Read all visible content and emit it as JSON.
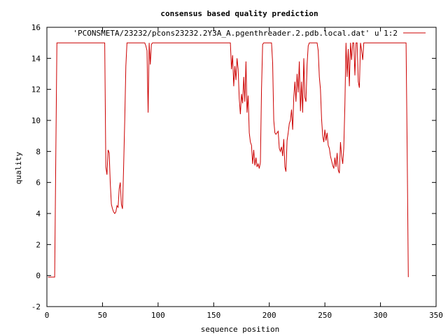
{
  "chart_data": {
    "type": "line",
    "title": "consensus based quality prediction",
    "xlabel": "sequence position",
    "ylabel": "quality",
    "xlim": [
      0,
      350
    ],
    "ylim": [
      -2,
      16
    ],
    "xticks": [
      0,
      50,
      100,
      150,
      200,
      250,
      300,
      350
    ],
    "yticks": [
      -2,
      0,
      2,
      4,
      6,
      8,
      10,
      12,
      14,
      16
    ],
    "grid": false,
    "legend_position": "top-right",
    "series": [
      {
        "name": "'PCONSMETA/23232/pcons23232.2Y3A_A.pgenthreader.2.pdb.local.dat' u 1:2",
        "color": "#cc0000",
        "points": [
          [
            1,
            -0.1
          ],
          [
            7,
            -0.1
          ],
          [
            8,
            7.6
          ],
          [
            9,
            15
          ],
          [
            10,
            15
          ],
          [
            20,
            15
          ],
          [
            30,
            15
          ],
          [
            40,
            15
          ],
          [
            50,
            15
          ],
          [
            51,
            15
          ],
          [
            52,
            15
          ],
          [
            53,
            7.0
          ],
          [
            54,
            6.5
          ],
          [
            55,
            8.1
          ],
          [
            56,
            7.9
          ],
          [
            57,
            6.0
          ],
          [
            58,
            4.6
          ],
          [
            59,
            4.3
          ],
          [
            60,
            4.1
          ],
          [
            61,
            4.0
          ],
          [
            62,
            4.1
          ],
          [
            63,
            4.5
          ],
          [
            64,
            4.4
          ],
          [
            65,
            5.6
          ],
          [
            66,
            6.0
          ],
          [
            67,
            4.6
          ],
          [
            68,
            4.3
          ],
          [
            69,
            7.0
          ],
          [
            70,
            10.0
          ],
          [
            71,
            13.5
          ],
          [
            72,
            15
          ],
          [
            80,
            15
          ],
          [
            88,
            15
          ],
          [
            89,
            14.8
          ],
          [
            90,
            14.5
          ],
          [
            91,
            10.5
          ],
          [
            92,
            15
          ],
          [
            93,
            13.6
          ],
          [
            94,
            14.9
          ],
          [
            95,
            15
          ],
          [
            100,
            15
          ],
          [
            110,
            15
          ],
          [
            120,
            15
          ],
          [
            130,
            15
          ],
          [
            140,
            15
          ],
          [
            150,
            15
          ],
          [
            160,
            15
          ],
          [
            165,
            15
          ],
          [
            166,
            13.3
          ],
          [
            167,
            14.2
          ],
          [
            168,
            12.2
          ],
          [
            169,
            13.5
          ],
          [
            170,
            12.6
          ],
          [
            171,
            14.0
          ],
          [
            172,
            13.3
          ],
          [
            173,
            11.4
          ],
          [
            174,
            10.4
          ],
          [
            175,
            11.7
          ],
          [
            176,
            11.1
          ],
          [
            177,
            12.8
          ],
          [
            178,
            11.2
          ],
          [
            179,
            13.8
          ],
          [
            180,
            10.5
          ],
          [
            181,
            11.6
          ],
          [
            182,
            9.2
          ],
          [
            183,
            8.6
          ],
          [
            184,
            8.4
          ],
          [
            185,
            7.2
          ],
          [
            186,
            8.1
          ],
          [
            187,
            7.1
          ],
          [
            188,
            7.6
          ],
          [
            189,
            7.0
          ],
          [
            190,
            7.2
          ],
          [
            191,
            6.9
          ],
          [
            192,
            7.3
          ],
          [
            193,
            12.0
          ],
          [
            194,
            14.9
          ],
          [
            195,
            15
          ],
          [
            196,
            15
          ],
          [
            200,
            15
          ],
          [
            202,
            15
          ],
          [
            203,
            13.7
          ],
          [
            204,
            10.0
          ],
          [
            205,
            9.2
          ],
          [
            206,
            9.1
          ],
          [
            207,
            9.2
          ],
          [
            208,
            9.3
          ],
          [
            209,
            8.2
          ],
          [
            210,
            8.0
          ],
          [
            211,
            8.3
          ],
          [
            212,
            7.7
          ],
          [
            213,
            8.8
          ],
          [
            214,
            7.0
          ],
          [
            215,
            6.7
          ],
          [
            216,
            8.7
          ],
          [
            217,
            9.2
          ],
          [
            218,
            9.8
          ],
          [
            219,
            10.0
          ],
          [
            220,
            10.7
          ],
          [
            221,
            9.4
          ],
          [
            222,
            11.5
          ],
          [
            223,
            12.5
          ],
          [
            224,
            11.2
          ],
          [
            225,
            13.0
          ],
          [
            226,
            11.8
          ],
          [
            227,
            13.8
          ],
          [
            228,
            10.6
          ],
          [
            229,
            12.5
          ],
          [
            230,
            10.5
          ],
          [
            231,
            14.0
          ],
          [
            232,
            11.5
          ],
          [
            233,
            11.2
          ],
          [
            234,
            13.6
          ],
          [
            235,
            14.8
          ],
          [
            236,
            15
          ],
          [
            240,
            15
          ],
          [
            243,
            15
          ],
          [
            244,
            14.5
          ],
          [
            245,
            12.8
          ],
          [
            246,
            12.0
          ],
          [
            247,
            10.1
          ],
          [
            248,
            9.0
          ],
          [
            249,
            8.6
          ],
          [
            250,
            9.4
          ],
          [
            251,
            8.7
          ],
          [
            252,
            9.2
          ],
          [
            253,
            8.4
          ],
          [
            254,
            8.2
          ],
          [
            255,
            7.7
          ],
          [
            256,
            7.4
          ],
          [
            257,
            7.1
          ],
          [
            258,
            6.9
          ],
          [
            259,
            7.6
          ],
          [
            260,
            7.0
          ],
          [
            261,
            7.9
          ],
          [
            262,
            6.8
          ],
          [
            263,
            6.6
          ],
          [
            264,
            8.6
          ],
          [
            265,
            7.7
          ],
          [
            266,
            7.2
          ],
          [
            267,
            8.2
          ],
          [
            268,
            11.0
          ],
          [
            269,
            15
          ],
          [
            270,
            12.8
          ],
          [
            271,
            14.6
          ],
          [
            272,
            12.2
          ],
          [
            273,
            15
          ],
          [
            274,
            13.9
          ],
          [
            275,
            15
          ],
          [
            276,
            15
          ],
          [
            277,
            12.9
          ],
          [
            278,
            15
          ],
          [
            279,
            15
          ],
          [
            280,
            12.5
          ],
          [
            281,
            12.1
          ],
          [
            282,
            15
          ],
          [
            283,
            14.5
          ],
          [
            284,
            13.9
          ],
          [
            285,
            15
          ],
          [
            286,
            15
          ],
          [
            290,
            15
          ],
          [
            300,
            15
          ],
          [
            310,
            15
          ],
          [
            320,
            15
          ],
          [
            323,
            15
          ],
          [
            324,
            8.0
          ],
          [
            325,
            -0.1
          ]
        ]
      }
    ]
  }
}
